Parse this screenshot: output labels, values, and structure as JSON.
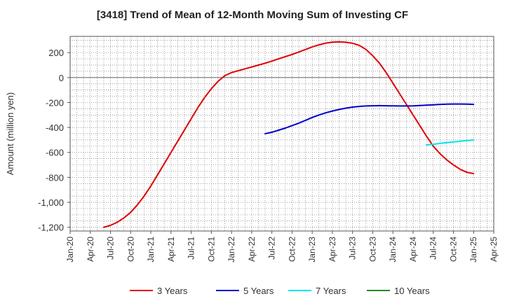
{
  "chart_data": {
    "type": "line",
    "title": "[3418]  Trend of Mean of 12-Month Moving Sum of Investing CF",
    "xlabel": "",
    "ylabel": "Amount (million yen)",
    "ylim": [
      -1230,
      330
    ],
    "yticks": [
      200,
      0,
      -200,
      -400,
      -600,
      -800,
      -1000,
      -1200
    ],
    "ytick_labels": [
      "200",
      "0",
      "-200",
      "-400",
      "-600",
      "-800",
      "-1,000",
      "-1,200"
    ],
    "xticks": [
      "Jan-20",
      "Apr-20",
      "Jul-20",
      "Oct-20",
      "Jan-21",
      "Apr-21",
      "Jul-21",
      "Oct-21",
      "Jan-22",
      "Apr-22",
      "Jul-22",
      "Oct-22",
      "Jan-23",
      "Apr-23",
      "Jul-23",
      "Oct-23",
      "Jan-24",
      "Apr-24",
      "Jul-24",
      "Oct-24",
      "Jan-25",
      "Apr-25"
    ],
    "grid": true,
    "legend_position": "bottom",
    "series": [
      {
        "name": "3 Years",
        "color": "#e00000",
        "x": [
          "2020-06",
          "2020-07",
          "2020-08",
          "2020-09",
          "2020-10",
          "2020-11",
          "2020-12",
          "2021-01",
          "2021-02",
          "2021-03",
          "2021-04",
          "2021-05",
          "2021-06",
          "2021-07",
          "2021-08",
          "2021-09",
          "2021-10",
          "2021-11",
          "2021-12",
          "2022-01",
          "2022-02",
          "2022-03",
          "2022-04",
          "2022-05",
          "2022-06",
          "2022-07",
          "2022-08",
          "2022-09",
          "2022-10",
          "2022-11",
          "2022-12",
          "2023-01",
          "2023-02",
          "2023-03",
          "2023-04",
          "2023-05",
          "2023-06",
          "2023-07",
          "2023-08",
          "2023-09",
          "2023-10",
          "2023-11",
          "2023-12",
          "2024-01",
          "2024-02",
          "2024-03",
          "2024-04",
          "2024-05",
          "2024-06",
          "2024-07",
          "2024-08",
          "2024-09",
          "2024-10",
          "2024-11",
          "2024-12",
          "2025-01"
        ],
        "values": [
          -1200,
          -1185,
          -1160,
          -1125,
          -1080,
          -1020,
          -950,
          -870,
          -780,
          -690,
          -600,
          -510,
          -420,
          -330,
          -240,
          -160,
          -90,
          -30,
          15,
          40,
          55,
          70,
          85,
          100,
          115,
          132,
          150,
          168,
          185,
          205,
          225,
          245,
          262,
          276,
          284,
          286,
          283,
          275,
          258,
          225,
          175,
          115,
          40,
          -45,
          -130,
          -215,
          -300,
          -385,
          -470,
          -550,
          -610,
          -660,
          -700,
          -735,
          -760,
          -770
        ]
      },
      {
        "name": "5 Years",
        "color": "#0000cc",
        "x": [
          "2022-06",
          "2022-07",
          "2022-08",
          "2022-09",
          "2022-10",
          "2022-11",
          "2022-12",
          "2023-01",
          "2023-02",
          "2023-03",
          "2023-04",
          "2023-05",
          "2023-06",
          "2023-07",
          "2023-08",
          "2023-09",
          "2023-10",
          "2023-11",
          "2023-12",
          "2024-01",
          "2024-02",
          "2024-03",
          "2024-04",
          "2024-05",
          "2024-06",
          "2024-07",
          "2024-08",
          "2024-09",
          "2024-10",
          "2024-11",
          "2024-12",
          "2025-01"
        ],
        "values": [
          -450,
          -438,
          -422,
          -405,
          -385,
          -365,
          -343,
          -320,
          -300,
          -283,
          -268,
          -256,
          -245,
          -237,
          -231,
          -228,
          -226,
          -225,
          -226,
          -227,
          -228,
          -228,
          -227,
          -224,
          -221,
          -218,
          -215,
          -213,
          -212,
          -212,
          -213,
          -215
        ]
      },
      {
        "name": "7 Years",
        "color": "#00e5ee",
        "x": [
          "2024-06",
          "2024-07",
          "2024-08",
          "2024-09",
          "2024-10",
          "2024-11",
          "2024-12",
          "2025-01"
        ],
        "values": [
          -540,
          -535,
          -528,
          -522,
          -516,
          -511,
          -505,
          -500
        ]
      },
      {
        "name": "10 Years",
        "color": "#228b22",
        "x": [],
        "values": []
      }
    ]
  }
}
